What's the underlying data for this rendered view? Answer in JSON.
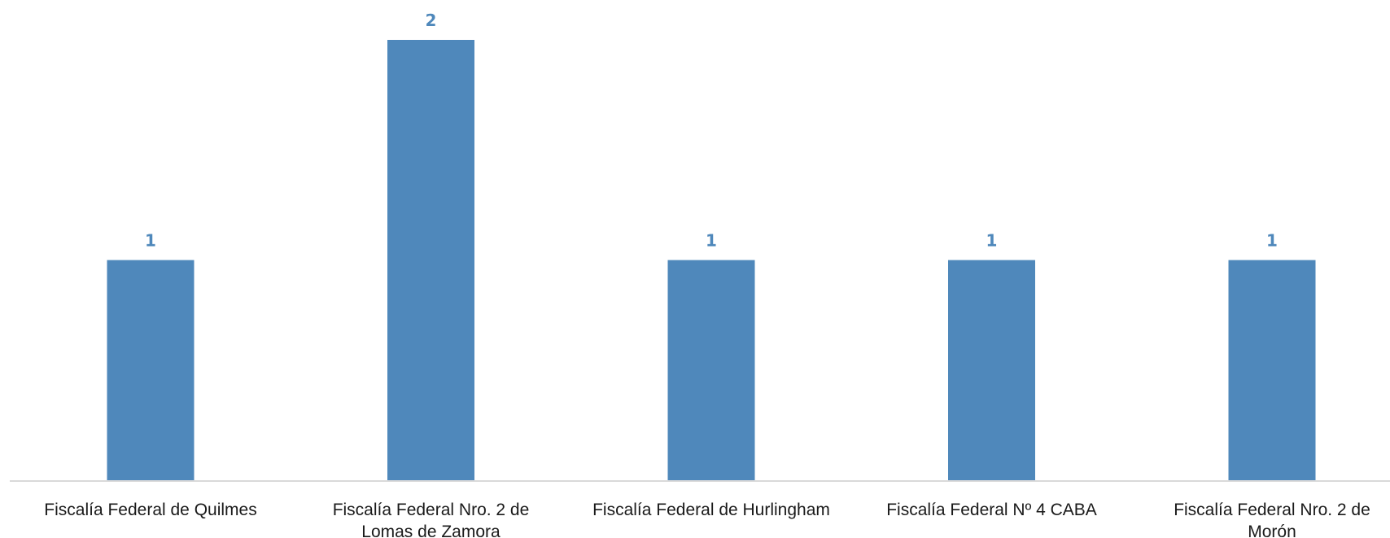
{
  "colors": {
    "bar": "#4f88bb",
    "axis": "#d9d9d9",
    "value_label": "#4f88bb"
  },
  "chart_data": {
    "type": "bar",
    "title": "",
    "xlabel": "",
    "ylabel": "",
    "categories": [
      "Fiscalía Federal de Quilmes",
      "Fiscalía Federal Nro. 2 de Lomas de Zamora",
      "Fiscalía Federal de Hurlingham",
      "Fiscalía Federal Nº 4 CABA",
      "Fiscalía Federal Nro. 2 de Morón"
    ],
    "category_lines": [
      [
        "Fiscalía Federal de Quilmes"
      ],
      [
        "Fiscalía Federal Nro. 2 de",
        "Lomas de Zamora"
      ],
      [
        "Fiscalía Federal de Hurlingham"
      ],
      [
        "Fiscalía Federal Nº 4 CABA"
      ],
      [
        "Fiscalía Federal Nro. 2 de",
        "Morón"
      ]
    ],
    "values": [
      1,
      2,
      1,
      1,
      1
    ],
    "ylim": [
      0,
      2
    ],
    "grid": false,
    "legend": "none",
    "data_labels": true
  }
}
